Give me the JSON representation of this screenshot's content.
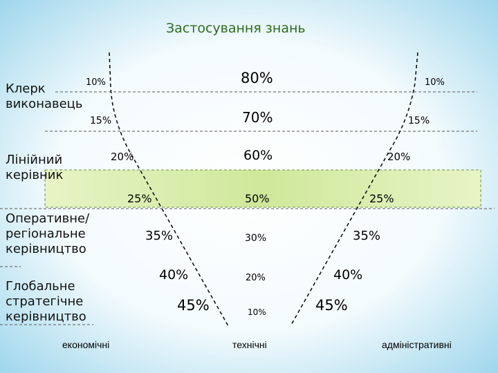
{
  "title": "Застосування знань",
  "roles": [
    {
      "line1": "Клерк",
      "line2": "виконавець"
    },
    {
      "line1": "Лінійний",
      "line2": "керівник"
    },
    {
      "line1": "Оперативне/",
      "line2": "регіональне",
      "line3": "керівництво"
    },
    {
      "line1": "Глобальне",
      "line2": "стратегічне",
      "line3": "керівництво"
    }
  ],
  "levels": [
    {
      "economic": "10%",
      "technical": "80%",
      "administrative": "10%"
    },
    {
      "economic": "15%",
      "technical": "70%",
      "administrative": "15%"
    },
    {
      "economic": "20%",
      "technical": "60%",
      "administrative": "20%"
    },
    {
      "economic": "25%",
      "technical": "50%",
      "administrative": "25%"
    },
    {
      "economic": "35%",
      "technical": "30%",
      "administrative": "35%"
    },
    {
      "economic": "40%",
      "technical": "20%",
      "administrative": "40%"
    },
    {
      "economic": "45%",
      "technical": "10%",
      "administrative": "45%"
    }
  ],
  "categories": {
    "economic": "економічні",
    "technical": "технічні",
    "administrative": "адміністративні"
  },
  "colors": {
    "title": "#2e6b1f",
    "highlight_band": "#dcefb0",
    "background_edge": "#9fd6ec"
  }
}
